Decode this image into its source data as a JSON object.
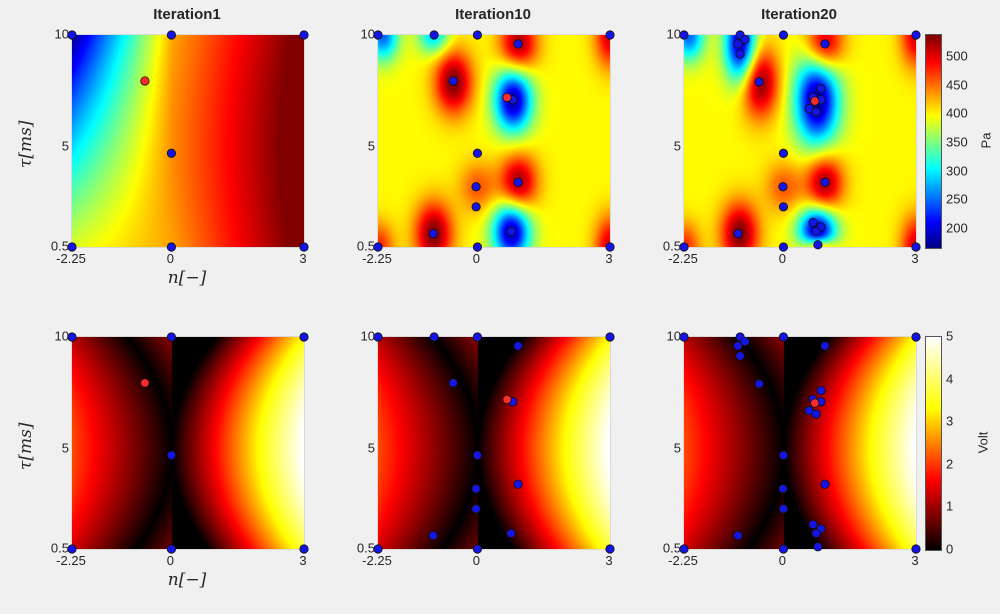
{
  "chart_data": {
    "type": "heatmap",
    "xlabel": "n[−]",
    "ylabel": "τ[ms]",
    "xlim": [
      -2.25,
      3
    ],
    "ylim": [
      0.5,
      10
    ],
    "xticks": [
      "-2.25",
      "0",
      "3"
    ],
    "yticks": [
      "0.5",
      "5",
      "10"
    ],
    "xtick_values": [
      -2.25,
      0,
      3
    ],
    "ytick_values": [
      0.5,
      5,
      10
    ],
    "colorbars": [
      {
        "label": "Pa",
        "colormap": "jet",
        "range": [
          167,
          538
        ],
        "ticks": [
          "200",
          "250",
          "300",
          "350",
          "400",
          "450",
          "500"
        ],
        "tick_values": [
          200,
          250,
          300,
          350,
          400,
          450,
          500
        ]
      },
      {
        "label": "Volt",
        "colormap": "hot",
        "range": [
          0,
          5
        ],
        "ticks": [
          "0",
          "1",
          "2",
          "3",
          "4",
          "5"
        ],
        "tick_values": [
          0,
          1,
          2,
          3,
          4,
          5
        ]
      }
    ],
    "panels": [
      {
        "title": "Iteration1",
        "row": 0,
        "col": 0,
        "points": [
          [
            -2.25,
            10
          ],
          [
            0,
            10
          ],
          [
            3,
            10
          ],
          [
            0,
            4.7
          ],
          [
            -2.25,
            0.5
          ],
          [
            0,
            0.5
          ],
          [
            3,
            0.5
          ]
        ],
        "best": [
          [
            -0.6,
            7.94
          ]
        ]
      },
      {
        "title": "Iteration10",
        "row": 0,
        "col": 1,
        "points": [
          [
            -2.25,
            10
          ],
          [
            -0.98,
            10
          ],
          [
            0,
            10
          ],
          [
            0.92,
            9.6
          ],
          [
            3,
            10
          ],
          [
            -0.55,
            7.94
          ],
          [
            0.8,
            7.1
          ],
          [
            0,
            4.7
          ],
          [
            -0.03,
            3.2
          ],
          [
            0.92,
            3.4
          ],
          [
            -0.03,
            2.3
          ],
          [
            -1.0,
            1.1
          ],
          [
            0.76,
            1.2
          ],
          [
            -2.25,
            0.5
          ],
          [
            0,
            0.5
          ],
          [
            3,
            0.5
          ]
        ],
        "best": [
          [
            0.67,
            7.2
          ]
        ]
      },
      {
        "title": "Iteration20",
        "row": 0,
        "col": 2,
        "points": [
          [
            -2.25,
            10
          ],
          [
            -0.98,
            10
          ],
          [
            -0.87,
            9.8
          ],
          [
            -1.03,
            9.6
          ],
          [
            -0.98,
            9.15
          ],
          [
            0,
            10
          ],
          [
            0.94,
            9.6
          ],
          [
            3,
            10
          ],
          [
            -0.55,
            7.9
          ],
          [
            0.85,
            7.6
          ],
          [
            0.67,
            7.2
          ],
          [
            0.85,
            7.1
          ],
          [
            0.58,
            6.7
          ],
          [
            0.74,
            6.55
          ],
          [
            0,
            4.7
          ],
          [
            0.94,
            3.4
          ],
          [
            -0.01,
            3.2
          ],
          [
            0,
            2.3
          ],
          [
            -1.03,
            1.1
          ],
          [
            0.67,
            1.6
          ],
          [
            0.85,
            1.4
          ],
          [
            0.74,
            1.2
          ],
          [
            0.78,
            0.6
          ],
          [
            -2.25,
            0.5
          ],
          [
            0,
            0.5
          ],
          [
            3,
            0.5
          ]
        ],
        "best": [
          [
            0.71,
            7.04
          ]
        ]
      },
      {
        "title": "",
        "row": 1,
        "col": 0,
        "points": [
          [
            -2.25,
            10
          ],
          [
            0,
            10
          ],
          [
            3,
            10
          ],
          [
            0,
            4.7
          ],
          [
            -2.25,
            0.5
          ],
          [
            0,
            0.5
          ],
          [
            3,
            0.5
          ]
        ],
        "best": [
          [
            -0.6,
            7.94
          ]
        ]
      },
      {
        "title": "",
        "row": 1,
        "col": 1,
        "points": [
          [
            -2.25,
            10
          ],
          [
            -0.98,
            10
          ],
          [
            0,
            10
          ],
          [
            0.92,
            9.6
          ],
          [
            3,
            10
          ],
          [
            -0.55,
            7.94
          ],
          [
            0.8,
            7.1
          ],
          [
            0,
            4.7
          ],
          [
            -0.03,
            3.2
          ],
          [
            0.92,
            3.4
          ],
          [
            -0.03,
            2.3
          ],
          [
            -1.0,
            1.1
          ],
          [
            0.76,
            1.2
          ],
          [
            -2.25,
            0.5
          ],
          [
            0,
            0.5
          ],
          [
            3,
            0.5
          ]
        ],
        "best": [
          [
            0.67,
            7.2
          ]
        ]
      },
      {
        "title": "",
        "row": 1,
        "col": 2,
        "points": [
          [
            -2.25,
            10
          ],
          [
            -0.98,
            10
          ],
          [
            -0.87,
            9.8
          ],
          [
            -1.03,
            9.6
          ],
          [
            -0.98,
            9.15
          ],
          [
            0,
            10
          ],
          [
            0.94,
            9.6
          ],
          [
            3,
            10
          ],
          [
            -0.55,
            7.9
          ],
          [
            0.85,
            7.6
          ],
          [
            0.67,
            7.2
          ],
          [
            0.85,
            7.1
          ],
          [
            0.58,
            6.7
          ],
          [
            0.74,
            6.55
          ],
          [
            0,
            4.7
          ],
          [
            0.94,
            3.4
          ],
          [
            -0.01,
            3.2
          ],
          [
            0,
            2.3
          ],
          [
            -1.03,
            1.1
          ],
          [
            0.67,
            1.6
          ],
          [
            0.85,
            1.4
          ],
          [
            0.74,
            1.2
          ],
          [
            0.78,
            0.6
          ],
          [
            -2.25,
            0.5
          ],
          [
            0,
            0.5
          ],
          [
            3,
            0.5
          ]
        ],
        "best": [
          [
            0.71,
            7.04
          ]
        ]
      }
    ],
    "colors": {
      "point": "#1414e6",
      "best": "#ff2a2a",
      "background": "#f0f0f0"
    }
  }
}
